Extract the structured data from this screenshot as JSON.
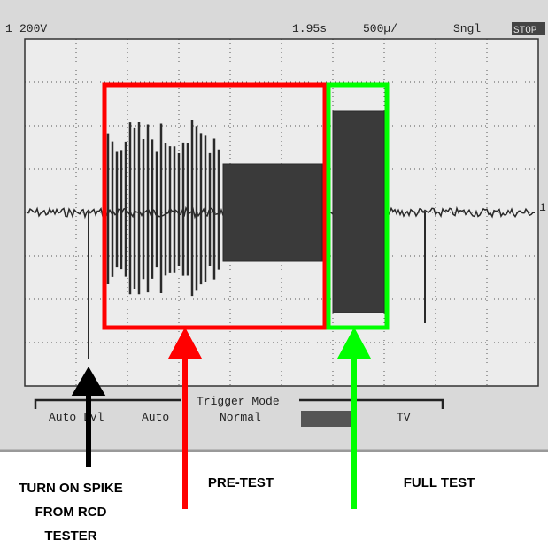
{
  "screen": {
    "channel": "1",
    "volts_per_div": "200V",
    "trigger_time": "1.95s",
    "time_per_div": "500µ/",
    "mode": "Sngl",
    "status": "STOP",
    "marker": "1"
  },
  "menu": {
    "title": "Trigger Mode",
    "items": [
      "Auto Lvl",
      "Auto",
      "Normal",
      "TV"
    ]
  },
  "annotations": {
    "spike": [
      "TURN ON SPIKE",
      "FROM RCD",
      "TESTER"
    ],
    "pre_test": "PRE-TEST",
    "full_test": "FULL TEST"
  }
}
